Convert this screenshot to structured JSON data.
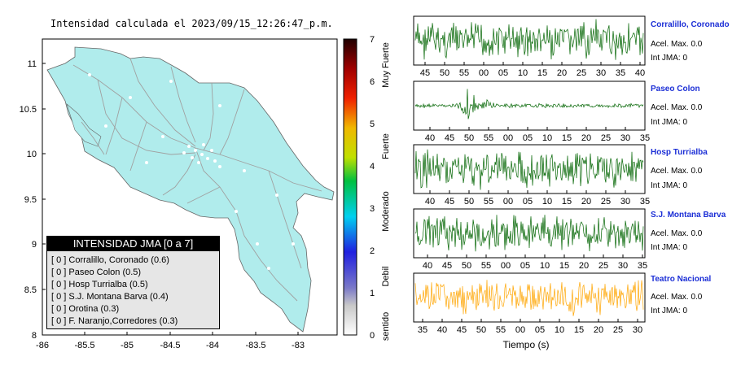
{
  "map": {
    "title": "Intensidad calculada el 2023/09/15_12:26:47_p.m.",
    "x_ticks": [
      "-86",
      "-85.5",
      "-85",
      "-84.5",
      "-84",
      "-83.5",
      "-83"
    ],
    "y_ticks": [
      "11",
      "10.5",
      "10",
      "9.5",
      "9",
      "8.5",
      "8"
    ],
    "land_color": "#b0ecec",
    "legend": {
      "title": "INTENSIDAD JMA [0 a 7]",
      "rows": [
        "[ 0 ]  Corralillo, Coronado (0.6)",
        "[ 0 ]  Paseo Colon (0.5)",
        "[ 0 ]  Hosp Turrialba (0.5)",
        "[ 0 ]  S.J. Montana Barva (0.4)",
        "[ 0 ]  Orotina (0.3)",
        "[ 0 ]  F. Naranjo,Corredores (0.3)"
      ]
    }
  },
  "colorbar": {
    "ticks": [
      "7",
      "6",
      "5",
      "4",
      "3",
      "2",
      "1",
      "0"
    ],
    "labels": [
      "Muy Fuerte",
      "Fuerte",
      "Moderado",
      "Debil",
      "No sentido"
    ]
  },
  "stations": [
    {
      "name": "Corralillo, Coronado",
      "acel": "Acel. Max. 0.0",
      "int": "Int JMA: 0",
      "ticks": [
        "45",
        "50",
        "55",
        "00",
        "05",
        "10",
        "15",
        "20",
        "25",
        "30",
        "35",
        "40"
      ],
      "color": "#006400"
    },
    {
      "name": "Paseo Colon",
      "acel": "Acel. Max. 0.0",
      "int": "Int JMA: 0",
      "ticks": [
        "40",
        "45",
        "50",
        "55",
        "00",
        "05",
        "10",
        "15",
        "20",
        "25",
        "30",
        "35"
      ],
      "color": "#006400"
    },
    {
      "name": "Hosp Turrialba",
      "acel": "Acel. Max. 0.0",
      "int": "Int JMA: 0",
      "ticks": [
        "40",
        "45",
        "50",
        "55",
        "00",
        "05",
        "10",
        "15",
        "20",
        "25",
        "30",
        "35"
      ],
      "color": "#006400"
    },
    {
      "name": "S.J. Montana Barva",
      "acel": "Acel. Max. 0.0",
      "int": "Int JMA: 0",
      "ticks": [
        "40",
        "45",
        "50",
        "55",
        "00",
        "05",
        "10",
        "15",
        "20",
        "25",
        "30",
        "35"
      ],
      "color": "#006400"
    },
    {
      "name": "Teatro Nacional",
      "acel": "Acel. Max. 0.0",
      "int": "Int JMA: 0",
      "ticks": [
        "35",
        "40",
        "45",
        "50",
        "55",
        "00",
        "05",
        "10",
        "15",
        "20",
        "25",
        "30"
      ],
      "color": "#ffa500"
    }
  ],
  "waveforms": {
    "xlabel": "Tiempo (s)"
  }
}
